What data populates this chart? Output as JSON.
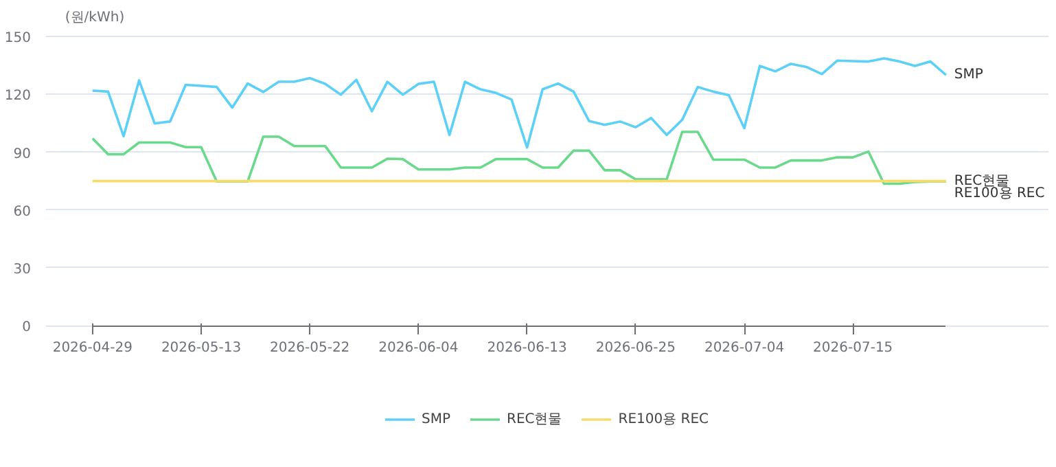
{
  "chart_data": {
    "type": "line",
    "ylabel": "(원/kWh)",
    "categories": [
      "2026-04-29",
      null,
      null,
      null,
      null,
      null,
      null,
      "2026-05-13",
      null,
      null,
      null,
      null,
      null,
      null,
      "2026-05-22",
      null,
      null,
      null,
      null,
      null,
      null,
      "2026-06-04",
      null,
      null,
      null,
      null,
      null,
      null,
      "2026-06-13",
      null,
      null,
      null,
      null,
      null,
      null,
      "2026-06-25",
      null,
      null,
      null,
      null,
      null,
      null,
      "2026-07-04",
      null,
      null,
      null,
      null,
      null,
      null,
      "2026-07-15",
      null,
      null,
      null,
      null,
      null,
      null
    ],
    "series": [
      {
        "name": "SMP",
        "color": "#5dd0f7",
        "values": [
          121.9,
          121.4,
          98.2,
          127.2,
          104.9,
          105.9,
          124.9,
          124.4,
          123.8,
          113.1,
          125.6,
          121.2,
          126.5,
          126.5,
          128.4,
          125.4,
          119.8,
          127.5,
          111.2,
          126.5,
          119.8,
          125.4,
          126.5,
          98.9,
          126.5,
          122.6,
          120.7,
          117.3,
          92.4,
          122.6,
          125.6,
          121.4,
          106.1,
          104.2,
          105.9,
          102.9,
          107.7,
          98.9,
          106.8,
          123.8,
          121.4,
          119.6,
          102.4,
          134.7,
          131.9,
          135.8,
          134.2,
          130.5,
          137.5,
          137.2,
          137.0,
          138.6,
          137.0,
          134.7,
          137.0,
          130.0
        ]
      },
      {
        "name": "REC현물",
        "color": "#6ad98b",
        "values": [
          97.1,
          88.9,
          88.9,
          95,
          95,
          95,
          92.6,
          92.6,
          74.8,
          74.8,
          74.8,
          98,
          98,
          93.1,
          93.1,
          93.1,
          82,
          82,
          82,
          86.6,
          86.4,
          81,
          81,
          81,
          82,
          82,
          86.4,
          86.4,
          86.4,
          82,
          82,
          90.8,
          90.8,
          80.6,
          80.6,
          75.9,
          75.9,
          75.9,
          100.5,
          100.5,
          86.1,
          86.1,
          86.1,
          82,
          82,
          85.7,
          85.7,
          85.7,
          87.3,
          87.3,
          90.3,
          73.6,
          73.6,
          74.5,
          74.8,
          74.8
        ]
      },
      {
        "name": "RE100용 REC",
        "color": "#f7dc6b",
        "values": [
          75,
          75,
          75,
          75,
          75,
          75,
          75,
          75,
          75,
          75,
          75,
          75,
          75,
          75,
          75,
          75,
          75,
          75,
          75,
          75,
          75,
          75,
          75,
          75,
          75,
          75,
          75,
          75,
          75,
          75,
          75,
          75,
          75,
          75,
          75,
          75,
          75,
          75,
          75,
          75,
          75,
          75,
          75,
          75,
          75,
          75,
          75,
          75,
          75,
          75,
          75,
          75,
          75,
          75,
          75,
          75
        ]
      }
    ],
    "ylim": [
      0,
      150
    ],
    "yticks": [
      0,
      30,
      60,
      90,
      120,
      150
    ],
    "grid": "y",
    "legend": "bottom",
    "marker": "none",
    "line_style": "solid"
  }
}
